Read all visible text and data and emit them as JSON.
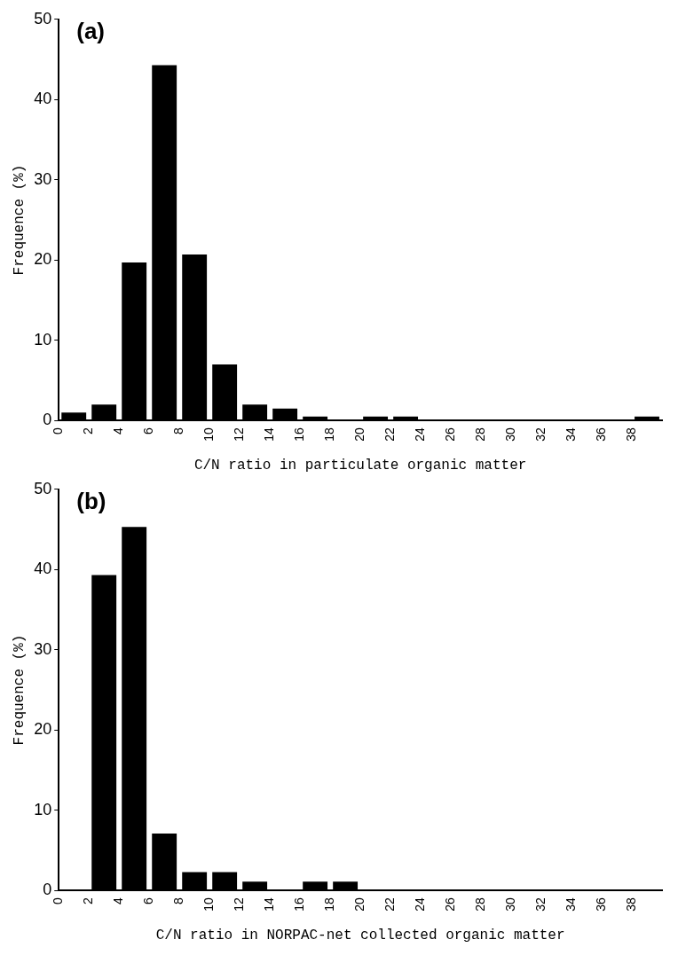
{
  "chart_data": [
    {
      "type": "histogram",
      "xlabel": "C/N ratio in particulate organic matter",
      "ylabel": "Frequence (%)",
      "annotations": [
        "(a)"
      ],
      "bins": [
        0,
        2,
        4,
        6,
        8,
        10,
        12,
        14,
        16,
        18,
        20,
        22,
        24,
        26,
        28,
        30,
        32,
        34,
        36,
        38,
        40
      ],
      "values": [
        1.0,
        2.0,
        19.7,
        44.3,
        20.7,
        7.0,
        2.0,
        1.5,
        0.5,
        0,
        0.5,
        0.5,
        0,
        0,
        0,
        0,
        0,
        0,
        0,
        0.5
      ],
      "color": "#000000",
      "xlim": [
        0,
        40
      ],
      "xticks": [
        0,
        2,
        4,
        6,
        8,
        10,
        12,
        14,
        16,
        18,
        20,
        22,
        24,
        26,
        28,
        30,
        32,
        34,
        36,
        38
      ],
      "ylim": [
        0,
        50
      ],
      "yticks": [
        0,
        10,
        20,
        30,
        40,
        50
      ],
      "grid": false,
      "legend": false
    },
    {
      "type": "histogram",
      "xlabel": "C/N ratio in NORPAC-net collected organic matter",
      "ylabel": "Frequence (%)",
      "annotations": [
        "(b)"
      ],
      "bins": [
        0,
        2,
        4,
        6,
        8,
        10,
        12,
        14,
        16,
        18,
        20,
        22,
        24,
        26,
        28,
        30,
        32,
        34,
        36,
        38,
        40
      ],
      "values": [
        0,
        39.3,
        45.3,
        7.1,
        2.3,
        2.3,
        1.1,
        0,
        1.1,
        1.1,
        0,
        0,
        0,
        0,
        0,
        0,
        0,
        0,
        0,
        0
      ],
      "color": "#000000",
      "xlim": [
        0,
        40
      ],
      "xticks": [
        0,
        2,
        4,
        6,
        8,
        10,
        12,
        14,
        16,
        18,
        20,
        22,
        24,
        26,
        28,
        30,
        32,
        34,
        36,
        38
      ],
      "ylim": [
        0,
        50
      ],
      "yticks": [
        0,
        10,
        20,
        30,
        40,
        50
      ],
      "grid": false,
      "legend": false
    }
  ]
}
